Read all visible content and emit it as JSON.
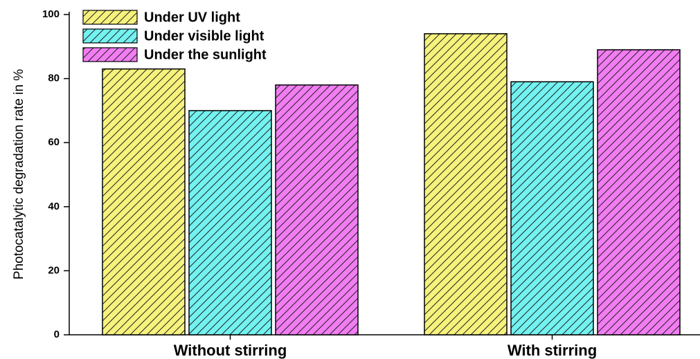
{
  "chart_data": {
    "type": "bar",
    "y_label": "Photocatalytic degradation rate in %",
    "categories": [
      "Without stirring",
      "With stirring"
    ],
    "series": [
      {
        "name": "Under UV light",
        "color": "#f6f27c",
        "values": [
          83,
          94
        ]
      },
      {
        "name": "Under visible light",
        "color": "#72f2f0",
        "values": [
          70,
          79
        ]
      },
      {
        "name": "Under the sunlight",
        "color": "#f27cf2",
        "values": [
          78,
          89
        ]
      }
    ],
    "ylim": [
      0,
      100
    ],
    "yticks": [
      0,
      20,
      40,
      60,
      80,
      100
    ],
    "hatch": true,
    "legend": "upper left"
  }
}
